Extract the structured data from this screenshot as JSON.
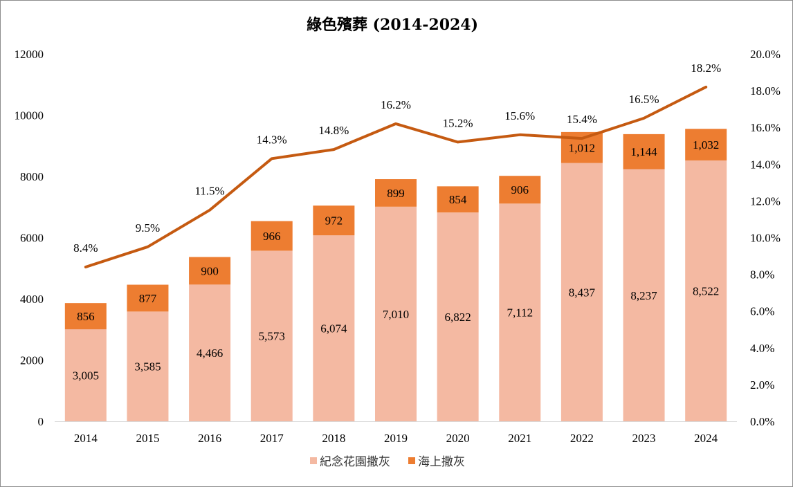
{
  "chart_data": {
    "type": "bar",
    "title": "綠色殯葬 (2014-2024)",
    "categories": [
      "2014",
      "2015",
      "2016",
      "2017",
      "2018",
      "2019",
      "2020",
      "2021",
      "2022",
      "2023",
      "2024"
    ],
    "series": [
      {
        "name": "紀念花園撒灰",
        "type": "bar",
        "stacked": true,
        "axis": "left",
        "color": "#f4b9a2",
        "values": [
          3005,
          3585,
          4466,
          5573,
          6074,
          7010,
          6822,
          7112,
          8437,
          8237,
          8522
        ],
        "labels": [
          "3,005",
          "3,585",
          "4,466",
          "5,573",
          "6,074",
          "7,010",
          "6,822",
          "7,112",
          "8,437",
          "8,237",
          "8,522"
        ]
      },
      {
        "name": "海上撒灰",
        "type": "bar",
        "stacked": true,
        "axis": "left",
        "color": "#ed7d31",
        "values": [
          856,
          877,
          900,
          966,
          972,
          899,
          854,
          906,
          1012,
          1144,
          1032
        ],
        "labels": [
          "856",
          "877",
          "900",
          "966",
          "972",
          "899",
          "854",
          "906",
          "1,012",
          "1,144",
          "1,032"
        ]
      },
      {
        "type": "line",
        "axis": "right",
        "color": "#c55a11",
        "values": [
          8.4,
          9.5,
          11.5,
          14.3,
          14.8,
          16.2,
          15.2,
          15.6,
          15.4,
          16.5,
          18.2
        ],
        "labels": [
          "8.4%",
          "9.5%",
          "11.5%",
          "14.3%",
          "14.8%",
          "16.2%",
          "15.2%",
          "15.6%",
          "15.4%",
          "16.5%",
          "18.2%"
        ]
      }
    ],
    "y_left": {
      "min": 0,
      "max": 12000,
      "step": 2000,
      "ticks": [
        "0",
        "2000",
        "4000",
        "6000",
        "8000",
        "10000",
        "12000"
      ]
    },
    "y_right": {
      "min": 0,
      "max": 20,
      "step": 2,
      "ticks": [
        "0.0%",
        "2.0%",
        "4.0%",
        "6.0%",
        "8.0%",
        "10.0%",
        "12.0%",
        "14.0%",
        "16.0%",
        "18.0%",
        "20.0%"
      ]
    },
    "grid": false,
    "legend_position": "bottom"
  }
}
